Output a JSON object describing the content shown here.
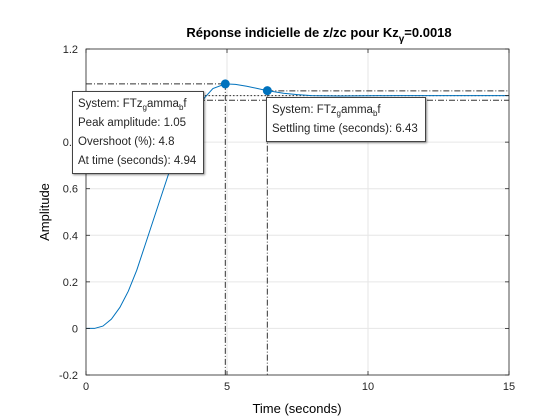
{
  "chart_data": {
    "type": "line",
    "title_main": "Réponse indicielle de z/zc pour Kz",
    "title_sub": "γ",
    "title_tail": "=0.0018",
    "xlabel": "Time (seconds)",
    "ylabel": "Amplitude",
    "xlim": [
      0,
      15
    ],
    "ylim": [
      -0.2,
      1.2
    ],
    "xticks": [
      0,
      5,
      10,
      15
    ],
    "yticks": [
      -0.2,
      0,
      0.2,
      0.4,
      0.6,
      0.8,
      1,
      1.2
    ],
    "ytick_labels": [
      "-0.2",
      "0",
      "0.2",
      "0.4",
      "0.6",
      "0.8",
      "1",
      "1.2"
    ],
    "grid": true,
    "series": [
      {
        "name": "FTz_gamma_bf",
        "color": "#0072BD",
        "x": [
          0,
          0.3,
          0.6,
          0.9,
          1.2,
          1.5,
          1.8,
          2.1,
          2.4,
          2.7,
          3.0,
          3.3,
          3.6,
          3.9,
          4.2,
          4.5,
          4.94,
          5.3,
          5.7,
          6.1,
          6.43,
          7.0,
          7.5,
          8.0,
          9.0,
          10.0,
          11.0,
          12.0,
          13.0,
          14.0,
          15.0
        ],
        "y": [
          0,
          0,
          0.01,
          0.04,
          0.09,
          0.16,
          0.25,
          0.36,
          0.47,
          0.58,
          0.69,
          0.78,
          0.87,
          0.94,
          0.99,
          1.03,
          1.05,
          1.048,
          1.04,
          1.03,
          1.021,
          1.01,
          1.004,
          1.0,
          0.998,
          0.999,
          1.0,
          1.0,
          1.0,
          1.0,
          1.0
        ]
      }
    ],
    "final_value": 1.0,
    "settling_band": [
      0.98,
      1.02
    ],
    "markers": {
      "peak": {
        "x": 4.94,
        "y": 1.05
      },
      "settling": {
        "x": 6.43,
        "y": 1.021
      }
    }
  },
  "datatips": {
    "peak": {
      "system_label": "System: FTz",
      "system_sub1": "g",
      "system_mid": "amma",
      "system_sub2": "b",
      "system_tail": "f",
      "peak_amplitude": "Peak amplitude: 1.05",
      "overshoot": "Overshoot (%): 4.8",
      "at_time": "At time (seconds): 4.94"
    },
    "settling": {
      "system_label": "System: FTz",
      "system_sub1": "g",
      "system_mid": "amma",
      "system_sub2": "b",
      "system_tail": "f",
      "settling_time": "Settling time (seconds): 6.43"
    }
  }
}
